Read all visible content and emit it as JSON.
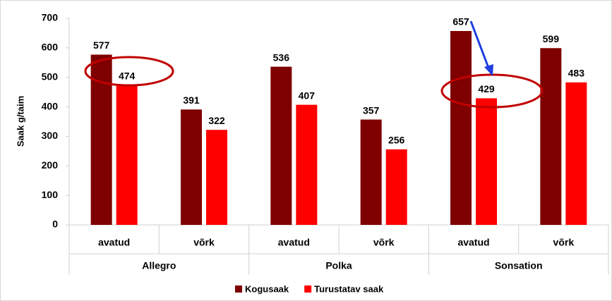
{
  "chart_data": {
    "type": "bar",
    "y_label": "Saak g/taim",
    "categories": [
      "avatud",
      "võrk",
      "avatud",
      "võrk",
      "avatud",
      "võrk"
    ],
    "groups": [
      "Allegro",
      "Polka",
      "Sonsation"
    ],
    "series": [
      {
        "name": "Kogusaak",
        "color": "#7f0000",
        "values": [
          577,
          391,
          536,
          357,
          657,
          599
        ]
      },
      {
        "name": "Turustatav saak",
        "color": "#ff0000",
        "values": [
          474,
          322,
          407,
          256,
          429,
          483
        ]
      }
    ],
    "ylim": [
      0,
      700
    ],
    "yticks": [
      0,
      100,
      200,
      300,
      400,
      500,
      600,
      700
    ],
    "grid": false,
    "legend": "bottom"
  }
}
